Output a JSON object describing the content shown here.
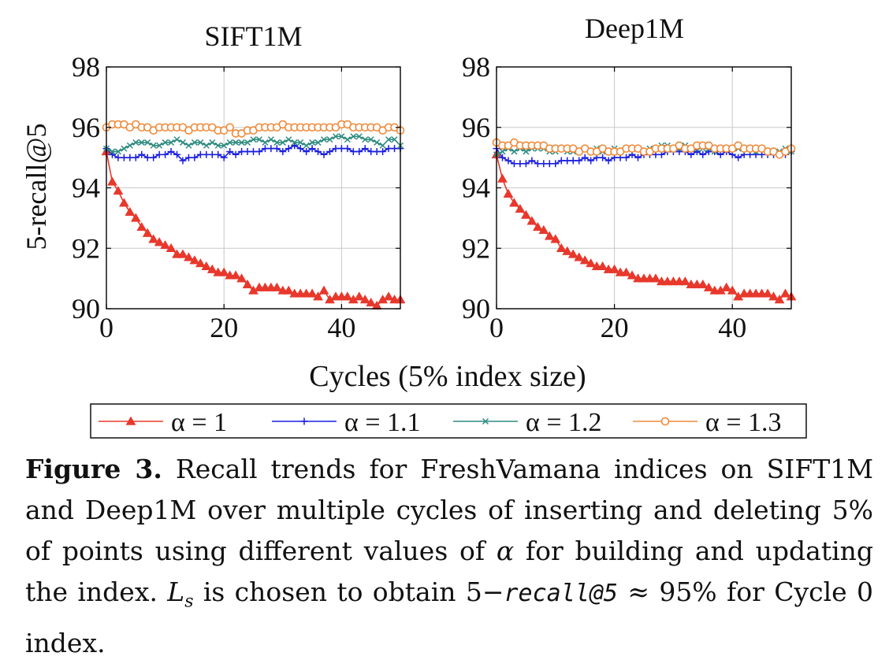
{
  "chart_data": [
    {
      "type": "line",
      "title": "SIFT1M",
      "xlabel": "Cycles (5% index size)",
      "ylabel": "5-recall@5",
      "xlim": [
        0,
        50
      ],
      "ylim": [
        90,
        98
      ],
      "xticks": [
        0,
        20,
        40
      ],
      "yticks": [
        90,
        92,
        94,
        96,
        98
      ],
      "grid": true,
      "x": [
        0,
        1,
        2,
        3,
        4,
        5,
        6,
        7,
        8,
        9,
        10,
        11,
        12,
        13,
        14,
        15,
        16,
        17,
        18,
        19,
        20,
        21,
        22,
        23,
        24,
        25,
        26,
        27,
        28,
        29,
        30,
        31,
        32,
        33,
        34,
        35,
        36,
        37,
        38,
        39,
        40,
        41,
        42,
        43,
        44,
        45,
        46,
        47,
        48,
        49,
        50
      ],
      "series": [
        {
          "name": "α = 1",
          "color": "#e8382c",
          "marker": "triangle",
          "values": [
            95.2,
            94.2,
            93.9,
            93.5,
            93.2,
            93.0,
            92.7,
            92.5,
            92.3,
            92.2,
            92.1,
            92.0,
            91.8,
            91.8,
            91.7,
            91.6,
            91.5,
            91.4,
            91.3,
            91.2,
            91.2,
            91.1,
            91.1,
            91.0,
            90.8,
            90.6,
            90.7,
            90.7,
            90.7,
            90.7,
            90.6,
            90.6,
            90.5,
            90.5,
            90.5,
            90.5,
            90.4,
            90.6,
            90.3,
            90.4,
            90.4,
            90.4,
            90.3,
            90.4,
            90.3,
            90.2,
            90.1,
            90.3,
            90.4,
            90.3,
            90.3
          ]
        },
        {
          "name": "α = 1.1",
          "color": "#1a1ee0",
          "marker": "plus",
          "values": [
            95.3,
            95.1,
            95.0,
            95.0,
            95.0,
            95.0,
            95.1,
            95.0,
            95.0,
            95.1,
            95.1,
            95.2,
            95.1,
            94.9,
            95.0,
            95.0,
            95.1,
            95.1,
            95.1,
            95.1,
            95.0,
            95.2,
            95.1,
            95.2,
            95.2,
            95.2,
            95.2,
            95.3,
            95.3,
            95.3,
            95.2,
            95.3,
            95.4,
            95.3,
            95.2,
            95.3,
            95.2,
            95.1,
            95.2,
            95.3,
            95.3,
            95.3,
            95.2,
            95.2,
            95.3,
            95.2,
            95.2,
            95.2,
            95.3,
            95.3,
            95.3
          ]
        },
        {
          "name": "α = 1.2",
          "color": "#2f8c80",
          "marker": "x",
          "values": [
            95.3,
            95.2,
            95.2,
            95.3,
            95.4,
            95.5,
            95.5,
            95.5,
            95.4,
            95.4,
            95.5,
            95.5,
            95.6,
            95.5,
            95.4,
            95.5,
            95.5,
            95.4,
            95.5,
            95.4,
            95.4,
            95.5,
            95.5,
            95.5,
            95.5,
            95.6,
            95.6,
            95.5,
            95.6,
            95.5,
            95.5,
            95.6,
            95.5,
            95.5,
            95.4,
            95.5,
            95.5,
            95.6,
            95.6,
            95.7,
            95.7,
            95.6,
            95.7,
            95.7,
            95.6,
            95.6,
            95.5,
            95.4,
            95.6,
            95.6,
            95.4
          ]
        },
        {
          "name": "α = 1.3",
          "color": "#ef8a3a",
          "marker": "circle",
          "values": [
            96.0,
            96.1,
            96.1,
            96.1,
            96.0,
            96.1,
            96.0,
            96.0,
            95.9,
            96.0,
            96.0,
            96.0,
            96.0,
            96.0,
            95.9,
            96.0,
            96.0,
            96.0,
            96.0,
            95.9,
            95.9,
            96.0,
            95.8,
            95.8,
            95.9,
            95.9,
            96.0,
            96.0,
            96.0,
            96.0,
            96.1,
            96.0,
            96.0,
            96.0,
            96.0,
            96.0,
            96.0,
            96.0,
            96.0,
            96.0,
            96.1,
            96.1,
            96.0,
            96.0,
            96.0,
            96.0,
            96.0,
            95.9,
            96.0,
            96.0,
            95.9
          ]
        }
      ]
    },
    {
      "type": "line",
      "title": "Deep1M",
      "xlabel": "Cycles (5% index size)",
      "ylabel": "",
      "xlim": [
        0,
        50
      ],
      "ylim": [
        90,
        98
      ],
      "xticks": [
        0,
        20,
        40
      ],
      "yticks": [
        90,
        92,
        94,
        96,
        98
      ],
      "grid": true,
      "x": [
        0,
        1,
        2,
        3,
        4,
        5,
        6,
        7,
        8,
        9,
        10,
        11,
        12,
        13,
        14,
        15,
        16,
        17,
        18,
        19,
        20,
        21,
        22,
        23,
        24,
        25,
        26,
        27,
        28,
        29,
        30,
        31,
        32,
        33,
        34,
        35,
        36,
        37,
        38,
        39,
        40,
        41,
        42,
        43,
        44,
        45,
        46,
        47,
        48,
        49,
        50
      ],
      "series": [
        {
          "name": "α = 1",
          "color": "#e8382c",
          "marker": "triangle",
          "values": [
            95.1,
            94.3,
            93.8,
            93.5,
            93.3,
            93.1,
            92.9,
            92.7,
            92.6,
            92.4,
            92.3,
            92.0,
            91.9,
            91.8,
            91.7,
            91.6,
            91.5,
            91.4,
            91.4,
            91.3,
            91.3,
            91.2,
            91.2,
            91.1,
            91.0,
            91.0,
            91.0,
            91.0,
            90.9,
            90.9,
            90.9,
            90.9,
            90.9,
            90.8,
            90.8,
            90.8,
            90.7,
            90.6,
            90.6,
            90.7,
            90.6,
            90.4,
            90.5,
            90.5,
            90.5,
            90.5,
            90.5,
            90.4,
            90.3,
            90.5,
            90.4
          ]
        },
        {
          "name": "α = 1.1",
          "color": "#1a1ee0",
          "marker": "plus",
          "values": [
            95.3,
            95.0,
            94.9,
            94.8,
            94.8,
            94.8,
            94.9,
            94.8,
            94.8,
            94.8,
            94.8,
            94.9,
            94.9,
            94.9,
            94.9,
            95.0,
            94.9,
            95.0,
            95.0,
            94.9,
            95.0,
            95.0,
            95.0,
            95.1,
            95.0,
            95.1,
            95.1,
            95.1,
            95.1,
            95.2,
            95.2,
            95.2,
            95.2,
            95.1,
            95.2,
            95.1,
            95.2,
            95.2,
            95.1,
            95.2,
            95.1,
            95.0,
            95.1,
            95.1,
            95.1,
            95.1,
            95.1,
            95.1,
            95.1,
            95.1,
            95.2
          ]
        },
        {
          "name": "α = 1.2",
          "color": "#2f8c80",
          "marker": "x",
          "values": [
            95.1,
            95.2,
            95.3,
            95.2,
            95.3,
            95.2,
            95.3,
            95.3,
            95.3,
            95.2,
            95.2,
            95.3,
            95.2,
            95.2,
            95.2,
            95.3,
            95.2,
            95.3,
            95.2,
            95.2,
            95.3,
            95.2,
            95.3,
            95.3,
            95.3,
            95.2,
            95.3,
            95.3,
            95.4,
            95.4,
            95.3,
            95.3,
            95.4,
            95.3,
            95.3,
            95.3,
            95.3,
            95.2,
            95.3,
            95.3,
            95.3,
            95.3,
            95.3,
            95.3,
            95.2,
            95.3,
            95.2,
            95.2,
            95.2,
            95.3,
            95.2
          ]
        },
        {
          "name": "α = 1.3",
          "color": "#ef8a3a",
          "marker": "circle",
          "values": [
            95.5,
            95.4,
            95.4,
            95.5,
            95.4,
            95.4,
            95.4,
            95.4,
            95.4,
            95.3,
            95.3,
            95.3,
            95.3,
            95.3,
            95.2,
            95.3,
            95.2,
            95.2,
            95.3,
            95.2,
            95.2,
            95.2,
            95.3,
            95.3,
            95.3,
            95.2,
            95.2,
            95.3,
            95.3,
            95.3,
            95.3,
            95.4,
            95.3,
            95.3,
            95.4,
            95.4,
            95.4,
            95.3,
            95.3,
            95.3,
            95.3,
            95.4,
            95.3,
            95.3,
            95.3,
            95.3,
            95.2,
            95.2,
            95.1,
            95.2,
            95.3
          ]
        }
      ]
    }
  ],
  "legend": {
    "position": "bottom",
    "entries": [
      "α = 1",
      "α = 1.1",
      "α = 1.2",
      "α = 1.3"
    ]
  },
  "caption": {
    "label": "Figure 3.",
    "text_1": " Recall trends for FreshVamana indices on SIFT1M and Deep1M over multiple cycles of inserting and deleting 5% of points using different values of ",
    "alpha": "α",
    "text_2": " for building and updating the index. ",
    "ls_main": "L",
    "ls_sub": "s",
    "text_3": " is chosen to obtain 5−",
    "metric": "recall@5",
    "text_4": " ≈ 95% for Cycle 0 index."
  }
}
